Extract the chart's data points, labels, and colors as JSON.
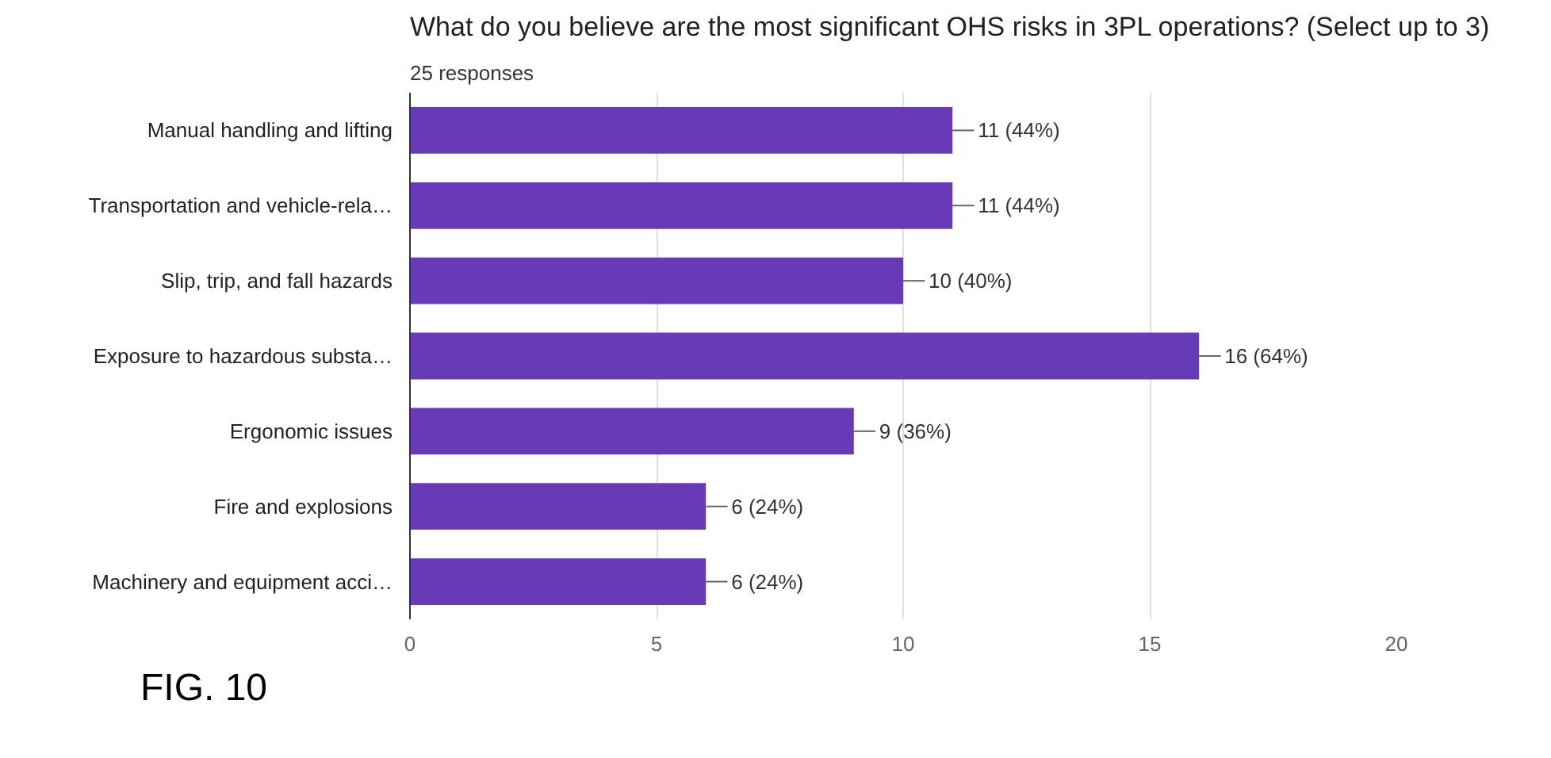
{
  "chart_data": {
    "type": "bar",
    "orientation": "horizontal",
    "title": "What do you believe are the most significant OHS risks in 3PL operations? (Select up to 3)",
    "subtitle": "25 responses",
    "categories": [
      "Manual handling and lifting",
      "Transportation and vehicle-rela…",
      "Slip, trip, and fall hazards",
      "Exposure to hazardous substa…",
      "Ergonomic issues",
      "Fire and explosions",
      "Machinery and equipment acci…"
    ],
    "values": [
      11,
      11,
      10,
      16,
      9,
      6,
      6
    ],
    "value_labels": [
      "11 (44%)",
      "11 (44%)",
      "10 (40%)",
      "16 (64%)",
      "9 (36%)",
      "6 (24%)",
      "6 (24%)"
    ],
    "color": "#673ab7",
    "xlim": [
      0,
      20
    ],
    "xticks": [
      0,
      5,
      10,
      15,
      20
    ],
    "grid": "x",
    "annotations": [
      "FIG. 10"
    ]
  }
}
